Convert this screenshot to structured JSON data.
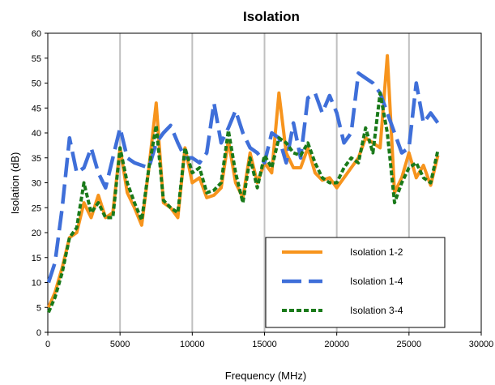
{
  "chart_data": {
    "type": "line",
    "title": "Isolation",
    "xlabel": "Frequency (MHz)",
    "ylabel": "Isolation (dB)",
    "xlim": [
      0,
      30000
    ],
    "ylim": [
      0,
      60
    ],
    "xticks": [
      0,
      5000,
      10000,
      15000,
      20000,
      25000,
      30000
    ],
    "yticks": [
      0,
      5,
      10,
      15,
      20,
      25,
      30,
      35,
      40,
      45,
      50,
      55,
      60
    ],
    "grid": "vertical",
    "legend_position": "bottom-right",
    "series": [
      {
        "name": "Isolation 1-2",
        "color": "#f7941d",
        "dash": "solid",
        "points": [
          [
            50,
            5
          ],
          [
            500,
            8
          ],
          [
            1000,
            13
          ],
          [
            1500,
            19
          ],
          [
            2000,
            20
          ],
          [
            2500,
            26
          ],
          [
            3000,
            23
          ],
          [
            3500,
            27.5
          ],
          [
            4000,
            23
          ],
          [
            4500,
            24
          ],
          [
            5000,
            37
          ],
          [
            5500,
            28
          ],
          [
            6000,
            25
          ],
          [
            6500,
            21.5
          ],
          [
            7000,
            33
          ],
          [
            7500,
            46
          ],
          [
            8000,
            26
          ],
          [
            8500,
            25
          ],
          [
            9000,
            23
          ],
          [
            9500,
            37
          ],
          [
            10000,
            30
          ],
          [
            10500,
            31
          ],
          [
            11000,
            27
          ],
          [
            11500,
            27.5
          ],
          [
            12000,
            29
          ],
          [
            12500,
            38.5
          ],
          [
            13000,
            30
          ],
          [
            13500,
            27
          ],
          [
            14000,
            36
          ],
          [
            14500,
            30
          ],
          [
            15000,
            34
          ],
          [
            15500,
            32
          ],
          [
            16000,
            48
          ],
          [
            16500,
            36
          ],
          [
            17000,
            33
          ],
          [
            17500,
            33
          ],
          [
            18000,
            37
          ],
          [
            18500,
            32
          ],
          [
            19000,
            30.5
          ],
          [
            19500,
            31
          ],
          [
            20000,
            29
          ],
          [
            20500,
            31
          ],
          [
            21000,
            33
          ],
          [
            21500,
            35
          ],
          [
            22000,
            39
          ],
          [
            22500,
            38
          ],
          [
            23000,
            37
          ],
          [
            23500,
            55.5
          ],
          [
            24000,
            28
          ],
          [
            24500,
            31
          ],
          [
            25000,
            36
          ],
          [
            25500,
            31
          ],
          [
            26000,
            33.5
          ],
          [
            26500,
            29.5
          ],
          [
            27000,
            35.5
          ]
        ]
      },
      {
        "name": "Isolation 1-4",
        "color": "#3f6fd9",
        "dash": "long-dash",
        "points": [
          [
            50,
            10
          ],
          [
            500,
            14
          ],
          [
            1000,
            25
          ],
          [
            1500,
            39
          ],
          [
            2000,
            32
          ],
          [
            2500,
            33
          ],
          [
            3000,
            37
          ],
          [
            3500,
            32
          ],
          [
            4000,
            29
          ],
          [
            4500,
            35
          ],
          [
            5000,
            41
          ],
          [
            5500,
            35
          ],
          [
            6000,
            34
          ],
          [
            6500,
            33.5
          ],
          [
            7000,
            33
          ],
          [
            7500,
            38
          ],
          [
            8000,
            40
          ],
          [
            8500,
            41.5
          ],
          [
            9000,
            38
          ],
          [
            9500,
            35
          ],
          [
            10000,
            35
          ],
          [
            10500,
            34
          ],
          [
            11000,
            36
          ],
          [
            11500,
            46
          ],
          [
            12000,
            38
          ],
          [
            12500,
            41
          ],
          [
            13000,
            44.5
          ],
          [
            13500,
            40
          ],
          [
            14000,
            37
          ],
          [
            14500,
            36
          ],
          [
            15000,
            34
          ],
          [
            15500,
            40
          ],
          [
            16000,
            39
          ],
          [
            16500,
            34
          ],
          [
            17000,
            42
          ],
          [
            17500,
            35
          ],
          [
            18000,
            47
          ],
          [
            18500,
            48
          ],
          [
            19000,
            44
          ],
          [
            19500,
            47.5
          ],
          [
            20000,
            44
          ],
          [
            20500,
            38
          ],
          [
            21000,
            40
          ],
          [
            21500,
            52
          ],
          [
            22000,
            51
          ],
          [
            22500,
            50
          ],
          [
            23000,
            48
          ],
          [
            23500,
            44
          ],
          [
            24000,
            40
          ],
          [
            24500,
            36
          ],
          [
            25000,
            37
          ],
          [
            25500,
            50
          ],
          [
            26000,
            42
          ],
          [
            26500,
            44
          ],
          [
            27000,
            42
          ]
        ]
      },
      {
        "name": "Isolation 3-4",
        "color": "#1a7a1a",
        "dash": "short-dash",
        "points": [
          [
            50,
            4
          ],
          [
            500,
            7
          ],
          [
            1000,
            12
          ],
          [
            1500,
            19
          ],
          [
            2000,
            21
          ],
          [
            2500,
            30
          ],
          [
            3000,
            24
          ],
          [
            3500,
            26
          ],
          [
            4000,
            23
          ],
          [
            4500,
            23
          ],
          [
            5000,
            37
          ],
          [
            5500,
            30
          ],
          [
            6000,
            26
          ],
          [
            6500,
            22.5
          ],
          [
            7000,
            33
          ],
          [
            7500,
            41.5
          ],
          [
            8000,
            26.5
          ],
          [
            8500,
            25
          ],
          [
            9000,
            24
          ],
          [
            9500,
            37
          ],
          [
            10000,
            32
          ],
          [
            10500,
            33
          ],
          [
            11000,
            28
          ],
          [
            11500,
            28.5
          ],
          [
            12000,
            30
          ],
          [
            12500,
            40.5
          ],
          [
            13000,
            32
          ],
          [
            13500,
            26
          ],
          [
            14000,
            35
          ],
          [
            14500,
            29
          ],
          [
            15000,
            35.5
          ],
          [
            15500,
            33
          ],
          [
            16000,
            39
          ],
          [
            16500,
            38
          ],
          [
            17000,
            36
          ],
          [
            17500,
            35.5
          ],
          [
            18000,
            38
          ],
          [
            18500,
            34
          ],
          [
            19000,
            31
          ],
          [
            19500,
            30
          ],
          [
            20000,
            30
          ],
          [
            20500,
            33
          ],
          [
            21000,
            35
          ],
          [
            21500,
            34
          ],
          [
            22000,
            41
          ],
          [
            22500,
            36
          ],
          [
            23000,
            48
          ],
          [
            23500,
            40
          ],
          [
            24000,
            26
          ],
          [
            24500,
            30
          ],
          [
            25000,
            33
          ],
          [
            25500,
            34
          ],
          [
            26000,
            31
          ],
          [
            26500,
            30
          ],
          [
            27000,
            36.5
          ]
        ]
      }
    ]
  }
}
